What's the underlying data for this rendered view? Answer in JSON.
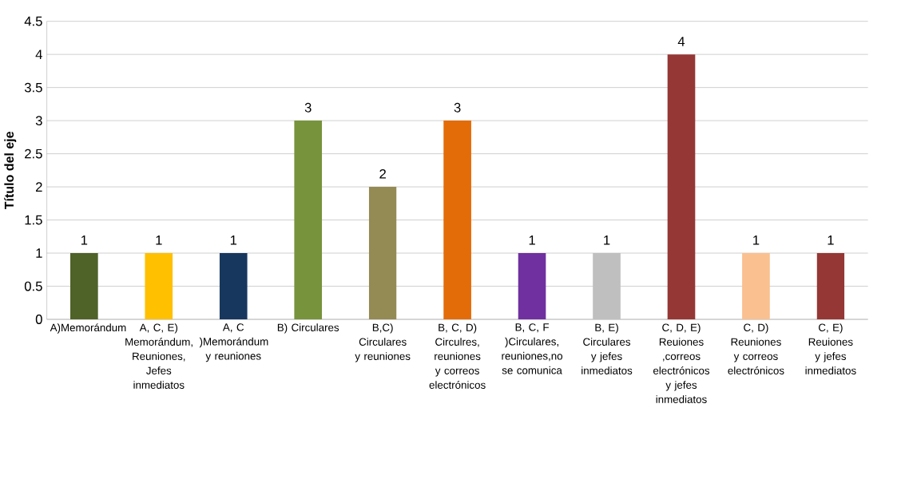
{
  "chart_data": {
    "type": "bar",
    "ylabel": "Título del eje",
    "categories": [
      "A)Memorándum",
      "A, C, E) Memorándum, Reuniones,Jefes inmediatos",
      "A, C )Memorándum y reuniones",
      "B) Circulares",
      "B,C) Circulares y reuniones",
      "B, C, D) Circulres, reuniones y correos electrónicos",
      "B, C, F )Circulares,reuniones,no se comunica",
      "B, E) Circulares y jefes inmediatos",
      "C, D, E) Reuiones ,correos electrónicos y jefes inmediatos",
      "C, D) Reuniones y correos electrónicos",
      "C, E) Reuiones y jefes inmediatos"
    ],
    "values": [
      1,
      1,
      1,
      3,
      2,
      3,
      1,
      1,
      4,
      1,
      1
    ],
    "colors": [
      "#4f6228",
      "#ffc000",
      "#17375e",
      "#77933c",
      "#948a54",
      "#e36c09",
      "#7030a0",
      "#bfbfbf",
      "#953735",
      "#fac090",
      "#953735"
    ],
    "ylim": [
      0,
      4.5
    ],
    "yticks": [
      0,
      0.5,
      1,
      1.5,
      2,
      2.5,
      3,
      3.5,
      4,
      4.5
    ],
    "grid": "y",
    "data_labels": true
  }
}
